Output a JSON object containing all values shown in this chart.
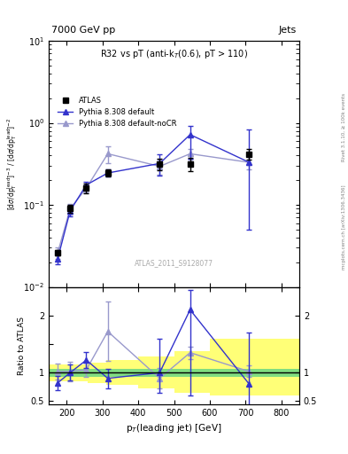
{
  "title_main": "R32 vs pT (anti-k_{T}(0.6), pT > 110)",
  "header_left": "7000 GeV pp",
  "header_right": "Jets",
  "watermark": "ATLAS_2011_S9128077",
  "right_label": "mcplots.cern.ch [arXiv:1306.3436]",
  "right_label2": "Rivet 3.1.10, ≥ 100k events",
  "ylabel_main": "[dσ/dp$_T^{lead}$]$^{-3}$ / [dσ/dp$_T^{lead}$]$^{-2}$",
  "ylabel_ratio": "Ratio to ATLAS",
  "xlabel": "p$_T$(leading jet) [GeV]",
  "xlim": [
    150,
    850
  ],
  "ylim_main": [
    0.01,
    10
  ],
  "ylim_ratio": [
    0.45,
    2.5
  ],
  "atlas_pt": [
    175,
    210,
    255,
    315,
    460,
    545,
    710
  ],
  "atlas_y": [
    0.026,
    0.09,
    0.16,
    0.245,
    0.315,
    0.315,
    0.415
  ],
  "atlas_yerr_lo": [
    0.002,
    0.01,
    0.02,
    0.025,
    0.05,
    0.06,
    0.06
  ],
  "atlas_yerr_hi": [
    0.002,
    0.01,
    0.02,
    0.025,
    0.05,
    0.06,
    0.06
  ],
  "py_default_pt": [
    175,
    210,
    255,
    315,
    460,
    545,
    710
  ],
  "py_default_y": [
    0.022,
    0.085,
    0.175,
    0.245,
    0.32,
    0.72,
    0.33
  ],
  "py_default_yerr_lo": [
    0.003,
    0.012,
    0.018,
    0.025,
    0.09,
    0.35,
    0.28
  ],
  "py_default_yerr_hi": [
    0.003,
    0.012,
    0.018,
    0.025,
    0.09,
    0.2,
    0.5
  ],
  "py_nocr_pt": [
    175,
    210,
    255,
    315,
    460,
    545,
    710
  ],
  "py_nocr_y": [
    0.026,
    0.09,
    0.16,
    0.42,
    0.295,
    0.42,
    0.33
  ],
  "py_nocr_yerr_lo": [
    0.004,
    0.013,
    0.018,
    0.1,
    0.06,
    0.06,
    0.06
  ],
  "py_nocr_yerr_hi": [
    0.004,
    0.013,
    0.018,
    0.1,
    0.06,
    0.06,
    0.06
  ],
  "ratio_py_default_y": [
    0.82,
    1.0,
    1.22,
    0.9,
    1.0,
    2.1,
    0.8
  ],
  "ratio_py_default_yerr_lo": [
    0.12,
    0.14,
    0.14,
    0.17,
    0.35,
    1.5,
    0.7
  ],
  "ratio_py_default_yerr_hi": [
    0.12,
    0.14,
    0.14,
    0.17,
    0.6,
    0.35,
    0.9
  ],
  "ratio_py_nocr_y": [
    1.02,
    1.02,
    1.05,
    1.72,
    0.9,
    1.35,
    1.02
  ],
  "ratio_py_nocr_yerr_lo": [
    0.14,
    0.17,
    0.13,
    0.52,
    0.18,
    0.11,
    0.1
  ],
  "ratio_py_nocr_yerr_hi": [
    0.14,
    0.17,
    0.13,
    0.52,
    0.18,
    0.11,
    0.1
  ],
  "band_edges": [
    150,
    215,
    260,
    310,
    400,
    500,
    600,
    850
  ],
  "band_green_lo": [
    0.93,
    0.93,
    0.93,
    0.93,
    0.93,
    0.93,
    0.93
  ],
  "band_green_hi": [
    1.07,
    1.07,
    1.07,
    1.07,
    1.07,
    1.07,
    1.07
  ],
  "band_yellow_lo": [
    0.85,
    0.85,
    0.82,
    0.78,
    0.72,
    0.65,
    0.6
  ],
  "band_yellow_hi": [
    1.14,
    1.14,
    1.18,
    1.22,
    1.28,
    1.38,
    1.6
  ],
  "color_atlas": "#000000",
  "color_default": "#3333cc",
  "color_nocr": "#9999cc",
  "color_green": "#80dd80",
  "color_yellow": "#ffff77"
}
